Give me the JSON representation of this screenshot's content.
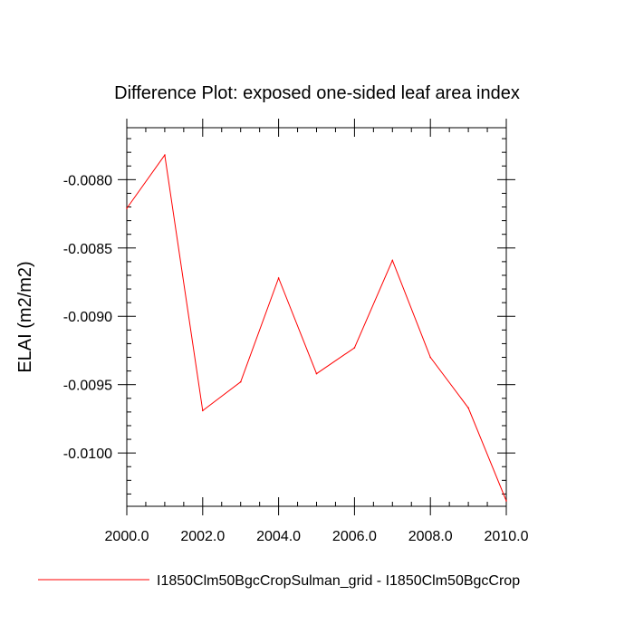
{
  "chart_data": {
    "type": "line",
    "title": "Difference Plot: exposed one-sided leaf area index",
    "xlabel": "",
    "ylabel": "ELAI  (m2/m2)",
    "xlim": [
      2000.0,
      2010.0
    ],
    "ylim": [
      -0.01039,
      -0.00762
    ],
    "x_ticks": [
      2000.0,
      2002.0,
      2004.0,
      2006.0,
      2008.0,
      2010.0
    ],
    "x_tick_labels": [
      "2000.0",
      "2002.0",
      "2004.0",
      "2006.0",
      "2008.0",
      "2010.0"
    ],
    "y_ticks": [
      -0.008,
      -0.0085,
      -0.009,
      -0.0095,
      -0.01
    ],
    "y_tick_labels": [
      "-0.0080",
      "-0.0085",
      "-0.0090",
      "-0.0095",
      "-0.0100"
    ],
    "grid": false,
    "legend_position": "bottom",
    "series": [
      {
        "name": "I1850Clm50BgcCropSulman_grid - I1850Clm50BgcCrop",
        "color": "#ff0000",
        "x": [
          2000,
          2001,
          2002,
          2003,
          2004,
          2005,
          2006,
          2007,
          2008,
          2009,
          2010
        ],
        "values": [
          -0.00821,
          -0.00782,
          -0.00969,
          -0.00948,
          -0.00872,
          -0.00942,
          -0.00923,
          -0.00859,
          -0.0093,
          -0.00967,
          -0.01035
        ]
      }
    ]
  }
}
